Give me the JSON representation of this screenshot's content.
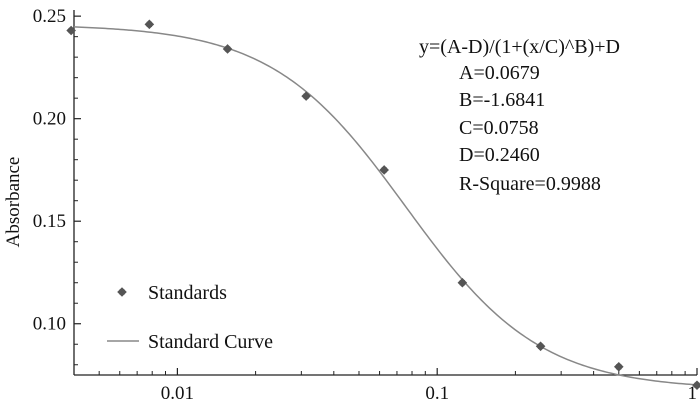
{
  "chart_data": {
    "type": "scatter",
    "title": "",
    "xlabel": "",
    "ylabel": "Absorbance",
    "x_scale": "log",
    "xlim": [
      0.004,
      1.0
    ],
    "ylim": [
      0.075,
      0.253
    ],
    "x_ticks": [
      {
        "value": 0.01,
        "label": "0.01"
      },
      {
        "value": 0.1,
        "label": "0.1"
      },
      {
        "value": 1,
        "label": "1"
      }
    ],
    "y_ticks": [
      {
        "value": 0.1,
        "label": "0.10"
      },
      {
        "value": 0.15,
        "label": "0.15"
      },
      {
        "value": 0.2,
        "label": "0.20"
      },
      {
        "value": 0.25,
        "label": "0.25"
      }
    ],
    "grid": false,
    "legend_position": "bottom-left",
    "series": [
      {
        "name": "Standards",
        "kind": "points",
        "color": "#555555",
        "points": [
          {
            "x": 0.0039,
            "y": 0.243
          },
          {
            "x": 0.0078,
            "y": 0.246
          },
          {
            "x": 0.0156,
            "y": 0.234
          },
          {
            "x": 0.0313,
            "y": 0.211
          },
          {
            "x": 0.0625,
            "y": 0.175
          },
          {
            "x": 0.125,
            "y": 0.12
          },
          {
            "x": 0.25,
            "y": 0.089
          },
          {
            "x": 0.5,
            "y": 0.079
          },
          {
            "x": 1.0,
            "y": 0.07
          }
        ]
      },
      {
        "name": "Standard Curve",
        "kind": "curve",
        "color": "#888888",
        "model": {
          "A": 0.0679,
          "B": -1.6841,
          "C": 0.0758,
          "D": 0.246
        }
      }
    ],
    "annotations": [
      "y=(A-D)/(1+(x/C)^B)+D",
      "A=0.0679",
      "B=-1.6841",
      "C=0.0758",
      "D=0.2460",
      "R-Square=0.9988"
    ]
  }
}
